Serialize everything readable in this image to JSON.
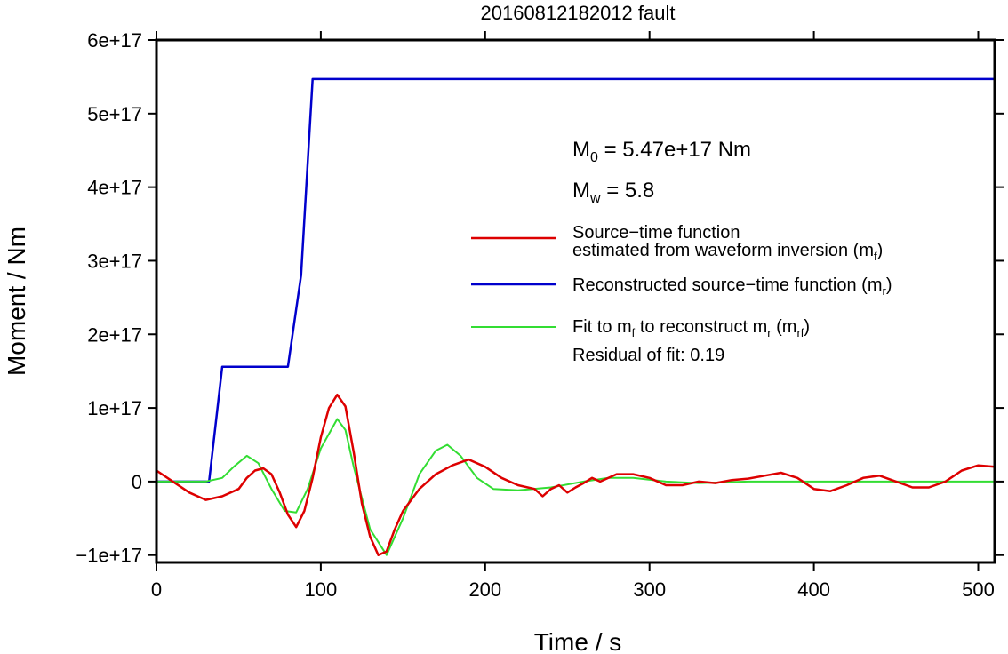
{
  "chart_data": {
    "type": "line",
    "title": "20160812182012 fault",
    "xlabel": "Time / s",
    "ylabel": "Moment / Nm",
    "xlim": [
      0,
      510
    ],
    "ylim": [
      -1.1e+17,
      6e+17
    ],
    "xticks": [
      0,
      100,
      200,
      300,
      400,
      500
    ],
    "xtick_labels": [
      "0",
      "100",
      "200",
      "300",
      "400",
      "500"
    ],
    "yticks": [
      -1e+17,
      0,
      1e+17,
      2e+17,
      3e+17,
      4e+17,
      5e+17,
      6e+17
    ],
    "ytick_labels": [
      "−1e+17",
      "0",
      "1e+17",
      "2e+17",
      "3e+17",
      "4e+17",
      "5e+17",
      "6e+17"
    ],
    "grid": false,
    "legend_position": "right",
    "series": [
      {
        "name": "Source−time function estimated from waveform inversion (m_f)",
        "color": "#dd0000",
        "x": [
          0,
          10,
          20,
          30,
          40,
          50,
          55,
          60,
          65,
          70,
          75,
          80,
          85,
          90,
          95,
          100,
          105,
          110,
          115,
          120,
          125,
          130,
          135,
          140,
          145,
          150,
          160,
          170,
          180,
          190,
          200,
          210,
          220,
          230,
          235,
          240,
          245,
          250,
          255,
          260,
          265,
          270,
          280,
          290,
          300,
          310,
          320,
          330,
          340,
          350,
          360,
          370,
          380,
          390,
          400,
          410,
          420,
          430,
          440,
          450,
          460,
          470,
          480,
          490,
          500,
          510
        ],
        "y": [
          1.5e+16,
          0.0,
          -1.5e+16,
          -2.5e+16,
          -2e+16,
          -1e+16,
          5000000000000000.0,
          1.5e+16,
          1.8e+16,
          1e+16,
          -1.5e+16,
          -4.5e+16,
          -6.2e+16,
          -4e+16,
          5000000000000000.0,
          6e+16,
          1e+17,
          1.18e+17,
          1.02e+17,
          4e+16,
          -3e+16,
          -7.5e+16,
          -1e+17,
          -9.5e+16,
          -6.5e+16,
          -4e+16,
          -1e+16,
          1e+16,
          2.2e+16,
          3e+16,
          2e+16,
          5000000000000000.0,
          -5000000000000000.0,
          -1e+16,
          -2e+16,
          -1e+16,
          -5000000000000000.0,
          -1.5e+16,
          -8000000000000000.0,
          -2000000000000000.0,
          5000000000000000.0,
          0.0,
          1e+16,
          1e+16,
          5000000000000000.0,
          -5000000000000000.0,
          -5000000000000000.0,
          0.0,
          -2000000000000000.0,
          2000000000000000.0,
          4000000000000000.0,
          8000000000000000.0,
          1.2e+16,
          5000000000000000.0,
          -1e+16,
          -1.3e+16,
          -5000000000000000.0,
          5000000000000000.0,
          8000000000000000.0,
          0.0,
          -8000000000000000.0,
          -8000000000000000.0,
          0.0,
          1.5e+16,
          2.2e+16,
          2e+16
        ]
      },
      {
        "name": "Reconstructed source−time function (m_r)",
        "color": "#0000cc",
        "x": [
          0,
          32,
          40,
          80,
          88,
          95,
          510
        ],
        "y": [
          0,
          0,
          1.56e+17,
          1.56e+17,
          2.8e+17,
          5.47e+17,
          5.47e+17
        ]
      },
      {
        "name": "Fit to m_f to reconstruct m_r (m_rf)",
        "color": "#33dd33",
        "x": [
          0,
          30,
          40,
          47,
          55,
          62,
          70,
          78,
          85,
          92,
          100,
          110,
          115,
          120,
          130,
          140,
          150,
          160,
          170,
          177,
          185,
          195,
          205,
          220,
          240,
          260,
          275,
          290,
          310,
          330,
          360,
          400,
          510
        ],
        "y": [
          0,
          0,
          5000000000000000.0,
          2e+16,
          3.5e+16,
          2.5e+16,
          -1e+16,
          -4e+16,
          -4.2e+16,
          -1e+16,
          4.5e+16,
          8.5e+16,
          7e+16,
          2e+16,
          -6.5e+16,
          -1e+17,
          -5e+16,
          1e+16,
          4.2e+16,
          5e+16,
          3.5e+16,
          5000000000000000.0,
          -1e+16,
          -1.2e+16,
          -8000000000000000.0,
          0.0,
          5000000000000000.0,
          5000000000000000.0,
          0.0,
          -2000000000000000.0,
          0.0,
          0.0,
          0.0
        ]
      }
    ]
  },
  "annotations": {
    "m0": {
      "sym": "M",
      "sub": "0",
      "rest": " = 5.47e+17 Nm"
    },
    "mw": {
      "sym": "M",
      "sub": "w",
      "rest": " = 5.8"
    },
    "legend": [
      {
        "line1": "Source−time function",
        "line2_pre": "estimated from waveform inversion (m",
        "line2_sub": "f",
        "line2_post": ")"
      },
      {
        "pre": "Reconstructed source−time function (m",
        "sub": "r",
        "post": ")"
      },
      {
        "pre": "Fit to m",
        "sub1": "f",
        "mid": " to reconstruct m",
        "sub2": "r",
        "mid2": " (m",
        "sub3": "rf",
        "post": ")"
      }
    ],
    "residual": "Residual of fit: 0.19"
  }
}
